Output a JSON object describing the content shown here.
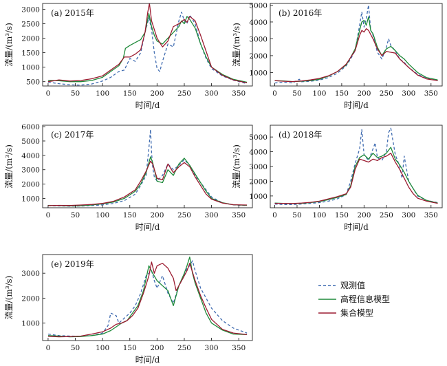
{
  "colors": {
    "observed": "#3f6bb0",
    "elevation": "#1f8a3a",
    "ensemble": "#9b1b30"
  },
  "legend": [
    {
      "key": "observed",
      "label": "观测值",
      "style": "dashed"
    },
    {
      "key": "elevation",
      "label": "高程信息模型",
      "style": "solid"
    },
    {
      "key": "ensemble",
      "label": "集合模型",
      "style": "solid"
    }
  ],
  "chart_data": [
    {
      "type": "line",
      "title": "(a) 2015年",
      "xlabel": "时间/d",
      "ylabel": "流量/(m³/s)",
      "xlim": [
        -10,
        375
      ],
      "ylim": [
        350,
        3200
      ],
      "xticks": [
        0,
        50,
        100,
        150,
        200,
        250,
        300,
        350
      ],
      "yticks": [
        500,
        1000,
        1500,
        2000,
        2500,
        3000
      ],
      "series": [
        {
          "key": "observed",
          "x": [
            0,
            20,
            40,
            60,
            80,
            100,
            115,
            130,
            140,
            150,
            160,
            170,
            178,
            185,
            190,
            195,
            200,
            205,
            210,
            220,
            230,
            240,
            245,
            250,
            255,
            260,
            270,
            280,
            290,
            300,
            320,
            340,
            365
          ],
          "y": [
            480,
            430,
            390,
            380,
            420,
            520,
            650,
            850,
            900,
            1300,
            1200,
            1500,
            2200,
            2700,
            2300,
            1500,
            950,
            850,
            1200,
            1800,
            1700,
            2600,
            2900,
            2600,
            2500,
            2800,
            2500,
            1800,
            1300,
            950,
            700,
            550,
            430
          ]
        },
        {
          "key": "elevation",
          "x": [
            0,
            20,
            40,
            60,
            80,
            100,
            115,
            130,
            138,
            142,
            150,
            160,
            170,
            178,
            185,
            190,
            195,
            200,
            210,
            220,
            230,
            240,
            245,
            250,
            255,
            260,
            270,
            280,
            290,
            300,
            320,
            340,
            365
          ],
          "y": [
            550,
            530,
            500,
            500,
            540,
            650,
            850,
            1050,
            1300,
            1650,
            1750,
            1850,
            1950,
            2200,
            2850,
            2400,
            2100,
            1900,
            1800,
            2000,
            2200,
            2400,
            2600,
            2500,
            2750,
            2650,
            2350,
            1800,
            1350,
            1000,
            750,
            580,
            480
          ]
        },
        {
          "key": "ensemble",
          "x": [
            0,
            20,
            40,
            60,
            80,
            100,
            115,
            130,
            140,
            150,
            160,
            170,
            178,
            183,
            186,
            190,
            195,
            200,
            210,
            220,
            230,
            240,
            250,
            255,
            260,
            270,
            280,
            290,
            300,
            320,
            340,
            365
          ],
          "y": [
            500,
            560,
            520,
            540,
            600,
            700,
            900,
            1100,
            1350,
            1350,
            1450,
            1600,
            2200,
            2900,
            3200,
            2600,
            2300,
            2000,
            1700,
            1900,
            2400,
            2500,
            2650,
            2550,
            2750,
            2600,
            2100,
            1550,
            1000,
            720,
            560,
            460
          ]
        }
      ]
    },
    {
      "type": "line",
      "title": "(b) 2016年",
      "xlabel": "时间/d",
      "ylabel": "流量/(m³/s)",
      "xlim": [
        -10,
        375
      ],
      "ylim": [
        200,
        5100
      ],
      "xticks": [
        0,
        50,
        100,
        150,
        200,
        250,
        300,
        350
      ],
      "yticks": [
        1000,
        2000,
        3000,
        4000,
        5000
      ],
      "series": [
        {
          "key": "observed",
          "x": [
            0,
            20,
            40,
            55,
            60,
            80,
            100,
            120,
            140,
            160,
            170,
            180,
            190,
            195,
            200,
            205,
            210,
            215,
            220,
            230,
            240,
            250,
            255,
            260,
            270,
            280,
            290,
            300,
            320,
            340,
            365
          ],
          "y": [
            380,
            420,
            380,
            600,
            450,
            480,
            550,
            700,
            950,
            1400,
            1800,
            2300,
            3800,
            4600,
            3700,
            4200,
            5000,
            3500,
            3200,
            2200,
            1800,
            2500,
            3000,
            2600,
            2300,
            1800,
            1600,
            1300,
            900,
            650,
            520
          ]
        },
        {
          "key": "elevation",
          "x": [
            0,
            20,
            40,
            60,
            80,
            100,
            120,
            140,
            160,
            170,
            180,
            190,
            195,
            200,
            205,
            210,
            215,
            220,
            230,
            240,
            250,
            260,
            270,
            280,
            290,
            300,
            320,
            340,
            365
          ],
          "y": [
            520,
            500,
            460,
            480,
            520,
            600,
            780,
            1050,
            1450,
            1900,
            2400,
            3500,
            4000,
            4100,
            3800,
            4300,
            3500,
            3300,
            2500,
            2000,
            2400,
            2550,
            2300,
            2000,
            1800,
            1500,
            1000,
            700,
            560
          ]
        },
        {
          "key": "ensemble",
          "x": [
            0,
            20,
            40,
            60,
            80,
            100,
            120,
            140,
            160,
            170,
            180,
            190,
            195,
            200,
            205,
            210,
            220,
            230,
            240,
            250,
            260,
            270,
            280,
            290,
            300,
            320,
            340,
            365
          ],
          "y": [
            520,
            480,
            460,
            500,
            560,
            650,
            800,
            1050,
            1500,
            1900,
            2300,
            3200,
            3500,
            3400,
            3600,
            3500,
            3000,
            2400,
            2000,
            2250,
            2200,
            2150,
            1800,
            1550,
            1300,
            850,
            620,
            520
          ]
        }
      ]
    },
    {
      "type": "line",
      "title": "(c) 2017年",
      "xlabel": "时间/d",
      "ylabel": "流量/(m³/s)",
      "xlim": [
        -10,
        375
      ],
      "ylim": [
        350,
        6100
      ],
      "xticks": [
        0,
        50,
        100,
        150,
        200,
        250,
        300,
        350
      ],
      "yticks": [
        1000,
        2000,
        3000,
        4000,
        5000,
        6000
      ],
      "series": [
        {
          "key": "observed",
          "x": [
            0,
            20,
            40,
            60,
            80,
            100,
            120,
            140,
            160,
            170,
            180,
            185,
            188,
            190,
            192,
            195,
            200,
            210,
            220,
            230,
            240,
            250,
            260,
            270,
            280,
            290,
            300,
            320,
            340,
            365
          ],
          "y": [
            500,
            480,
            460,
            470,
            500,
            550,
            650,
            850,
            1300,
            1900,
            2600,
            4500,
            5800,
            4200,
            3200,
            2500,
            2200,
            2600,
            3400,
            3000,
            3300,
            3700,
            3300,
            2600,
            2100,
            1600,
            1100,
            700,
            550,
            500
          ]
        },
        {
          "key": "elevation",
          "x": [
            0,
            20,
            40,
            60,
            80,
            100,
            120,
            140,
            160,
            170,
            180,
            188,
            192,
            200,
            210,
            220,
            230,
            240,
            250,
            260,
            270,
            280,
            290,
            300,
            320,
            340,
            365
          ],
          "y": [
            520,
            500,
            480,
            490,
            540,
            620,
            750,
            1000,
            1500,
            2000,
            2800,
            3900,
            3500,
            2200,
            2100,
            3000,
            2600,
            3400,
            3800,
            3300,
            2700,
            2100,
            1500,
            1000,
            700,
            560,
            520
          ]
        },
        {
          "key": "ensemble",
          "x": [
            0,
            20,
            40,
            60,
            80,
            100,
            120,
            140,
            160,
            170,
            180,
            188,
            192,
            200,
            210,
            220,
            230,
            240,
            250,
            260,
            270,
            280,
            290,
            300,
            320,
            340,
            365
          ],
          "y": [
            500,
            520,
            510,
            540,
            580,
            650,
            800,
            1100,
            1600,
            2200,
            2900,
            3600,
            3400,
            2400,
            2300,
            3400,
            2800,
            3200,
            3500,
            3200,
            2500,
            1900,
            1300,
            950,
            680,
            560,
            540
          ]
        }
      ]
    },
    {
      "type": "line",
      "title": "(d) 2018年",
      "xlabel": "时间/d",
      "ylabel": "流量/(m³/s)",
      "xlim": [
        -10,
        375
      ],
      "ylim": [
        200,
        5800
      ],
      "xticks": [
        0,
        50,
        100,
        150,
        200,
        250,
        300,
        350
      ],
      "yticks": [
        1000,
        2000,
        3000,
        4000,
        5000
      ],
      "series": [
        {
          "key": "observed",
          "x": [
            0,
            20,
            40,
            60,
            80,
            100,
            120,
            140,
            160,
            170,
            180,
            190,
            195,
            200,
            210,
            220,
            225,
            230,
            240,
            250,
            255,
            260,
            270,
            280,
            285,
            290,
            300,
            310,
            320,
            340,
            365
          ],
          "y": [
            450,
            420,
            420,
            450,
            500,
            550,
            650,
            800,
            1100,
            2000,
            3200,
            4200,
            5500,
            3800,
            3400,
            4200,
            4600,
            3600,
            3400,
            4000,
            5300,
            5600,
            3800,
            3000,
            2200,
            3700,
            2000,
            1500,
            1000,
            700,
            550
          ]
        },
        {
          "key": "elevation",
          "x": [
            0,
            20,
            40,
            60,
            80,
            100,
            120,
            140,
            160,
            170,
            180,
            190,
            200,
            210,
            220,
            230,
            240,
            250,
            260,
            270,
            280,
            290,
            300,
            310,
            320,
            340,
            365
          ],
          "y": [
            520,
            500,
            480,
            500,
            550,
            620,
            750,
            900,
            1100,
            1700,
            3000,
            3600,
            3800,
            3500,
            3900,
            3600,
            3700,
            3900,
            4300,
            3500,
            3100,
            2600,
            2000,
            1500,
            1050,
            700,
            520
          ]
        },
        {
          "key": "ensemble",
          "x": [
            0,
            20,
            40,
            60,
            80,
            100,
            120,
            140,
            160,
            170,
            180,
            190,
            200,
            210,
            220,
            230,
            240,
            250,
            260,
            270,
            280,
            290,
            300,
            310,
            320,
            340,
            365
          ],
          "y": [
            500,
            500,
            490,
            520,
            570,
            650,
            800,
            950,
            1150,
            1600,
            2800,
            3500,
            3400,
            3300,
            3500,
            3400,
            3600,
            3700,
            3900,
            3300,
            2800,
            2200,
            1600,
            1150,
            850,
            650,
            500
          ]
        }
      ]
    },
    {
      "type": "line",
      "title": "(e) 2019年",
      "xlabel": "时间/d",
      "ylabel": "流量/(m³/s)",
      "xlim": [
        -10,
        375
      ],
      "ylim": [
        300,
        3750
      ],
      "xticks": [
        0,
        50,
        100,
        150,
        200,
        250,
        300,
        350
      ],
      "yticks": [
        1000,
        2000,
        3000
      ],
      "series": [
        {
          "key": "observed",
          "x": [
            0,
            20,
            40,
            60,
            80,
            100,
            110,
            115,
            125,
            130,
            140,
            150,
            160,
            170,
            180,
            190,
            195,
            200,
            210,
            220,
            230,
            240,
            250,
            255,
            260,
            265,
            270,
            280,
            290,
            300,
            320,
            340,
            365
          ],
          "y": [
            560,
            500,
            480,
            470,
            500,
            600,
            900,
            1400,
            1300,
            1000,
            1200,
            1400,
            1700,
            2200,
            2900,
            3100,
            2700,
            2400,
            2900,
            2200,
            1800,
            2500,
            2900,
            3200,
            3300,
            3500,
            3100,
            2400,
            2000,
            1600,
            1100,
            800,
            600
          ]
        },
        {
          "key": "elevation",
          "x": [
            0,
            20,
            40,
            60,
            80,
            100,
            115,
            125,
            135,
            145,
            155,
            165,
            175,
            185,
            192,
            200,
            210,
            220,
            230,
            240,
            250,
            255,
            260,
            265,
            270,
            280,
            290,
            300,
            320,
            340,
            365
          ],
          "y": [
            500,
            480,
            450,
            460,
            500,
            560,
            700,
            850,
            1000,
            1100,
            1400,
            1700,
            2300,
            3300,
            3000,
            2700,
            2500,
            2300,
            1700,
            2500,
            3000,
            3300,
            3650,
            3000,
            2600,
            2000,
            1400,
            1000,
            720,
            560,
            540
          ]
        },
        {
          "key": "ensemble",
          "x": [
            0,
            20,
            40,
            60,
            80,
            100,
            115,
            125,
            135,
            145,
            155,
            165,
            175,
            185,
            190,
            195,
            200,
            210,
            220,
            230,
            235,
            240,
            250,
            255,
            260,
            270,
            280,
            290,
            300,
            320,
            340,
            365
          ],
          "y": [
            470,
            450,
            460,
            480,
            560,
            650,
            800,
            950,
            1000,
            1100,
            1300,
            1600,
            2200,
            2900,
            3450,
            3000,
            3300,
            3400,
            3200,
            2800,
            2300,
            2500,
            2900,
            3100,
            3400,
            2700,
            2100,
            1600,
            1150,
            750,
            600,
            540
          ]
        }
      ]
    }
  ]
}
